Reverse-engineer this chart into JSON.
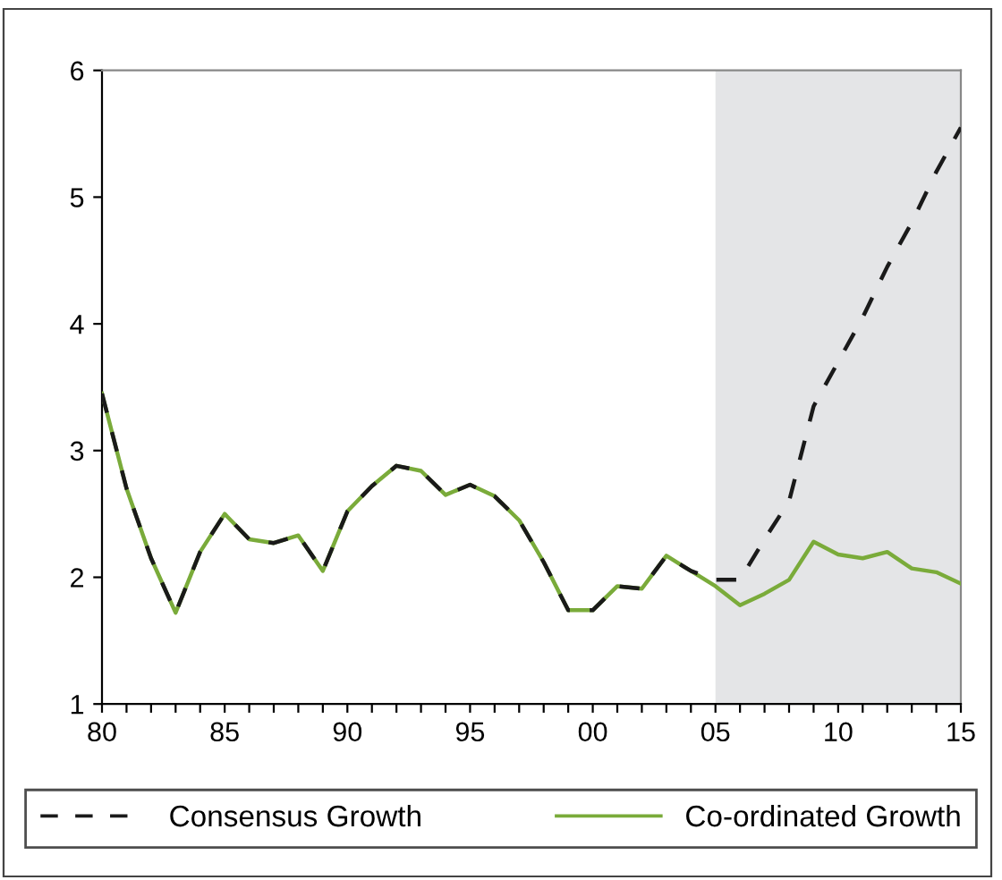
{
  "chart_data": {
    "type": "line",
    "x": [
      1980,
      1981,
      1982,
      1983,
      1984,
      1985,
      1986,
      1987,
      1988,
      1989,
      1990,
      1991,
      1992,
      1993,
      1994,
      1995,
      1996,
      1997,
      1998,
      1999,
      2000,
      2001,
      2002,
      2003,
      2004,
      2005,
      2006,
      2007,
      2008,
      2009,
      2010,
      2011,
      2012,
      2013,
      2014,
      2015
    ],
    "series": [
      {
        "name": "Consensus Growth",
        "color": "#1a1a1a",
        "line_style": "dashed",
        "values": [
          3.45,
          2.7,
          2.15,
          1.72,
          2.2,
          2.5,
          2.3,
          2.27,
          2.33,
          2.05,
          2.52,
          2.72,
          2.88,
          2.84,
          2.65,
          2.73,
          2.64,
          2.45,
          2.12,
          1.74,
          1.74,
          1.93,
          1.91,
          2.17,
          2.05,
          1.98,
          1.98,
          2.3,
          2.6,
          3.35,
          3.7,
          4.05,
          4.45,
          4.8,
          5.2,
          5.55
        ]
      },
      {
        "name": "Co-ordinated Growth",
        "color": "#7aab3a",
        "line_style": "solid",
        "values": [
          3.45,
          2.7,
          2.15,
          1.72,
          2.2,
          2.5,
          2.3,
          2.27,
          2.33,
          2.05,
          2.52,
          2.72,
          2.88,
          2.84,
          2.65,
          2.73,
          2.64,
          2.45,
          2.12,
          1.74,
          1.74,
          1.93,
          1.91,
          2.17,
          2.05,
          1.93,
          1.78,
          1.87,
          1.98,
          2.28,
          2.18,
          2.15,
          2.2,
          2.07,
          2.04,
          1.95
        ]
      }
    ],
    "xlim": [
      1980,
      2015
    ],
    "ylim": [
      1,
      6
    ],
    "xticks": [
      {
        "value": 1980,
        "label": "80"
      },
      {
        "value": 1981,
        "label": null
      },
      {
        "value": 1982,
        "label": null
      },
      {
        "value": 1983,
        "label": null
      },
      {
        "value": 1984,
        "label": null
      },
      {
        "value": 1985,
        "label": "85"
      },
      {
        "value": 1986,
        "label": null
      },
      {
        "value": 1987,
        "label": null
      },
      {
        "value": 1988,
        "label": null
      },
      {
        "value": 1989,
        "label": null
      },
      {
        "value": 1990,
        "label": "90"
      },
      {
        "value": 1991,
        "label": null
      },
      {
        "value": 1992,
        "label": null
      },
      {
        "value": 1993,
        "label": null
      },
      {
        "value": 1994,
        "label": null
      },
      {
        "value": 1995,
        "label": "95"
      },
      {
        "value": 1996,
        "label": null
      },
      {
        "value": 1997,
        "label": null
      },
      {
        "value": 1998,
        "label": null
      },
      {
        "value": 1999,
        "label": null
      },
      {
        "value": 2000,
        "label": "00"
      },
      {
        "value": 2001,
        "label": null
      },
      {
        "value": 2002,
        "label": null
      },
      {
        "value": 2003,
        "label": null
      },
      {
        "value": 2004,
        "label": null
      },
      {
        "value": 2005,
        "label": "05"
      },
      {
        "value": 2006,
        "label": null
      },
      {
        "value": 2007,
        "label": null
      },
      {
        "value": 2008,
        "label": null
      },
      {
        "value": 2009,
        "label": null
      },
      {
        "value": 2010,
        "label": "10"
      },
      {
        "value": 2011,
        "label": null
      },
      {
        "value": 2012,
        "label": null
      },
      {
        "value": 2013,
        "label": null
      },
      {
        "value": 2014,
        "label": null
      },
      {
        "value": 2015,
        "label": "15"
      }
    ],
    "yticks": [
      1,
      2,
      3,
      4,
      5,
      6
    ],
    "bands": [
      {
        "axis": "x",
        "from": 2005,
        "to": 2015,
        "color": "#e4e5e7"
      }
    ],
    "grid": false,
    "legend": "bottom",
    "marker": "none"
  }
}
